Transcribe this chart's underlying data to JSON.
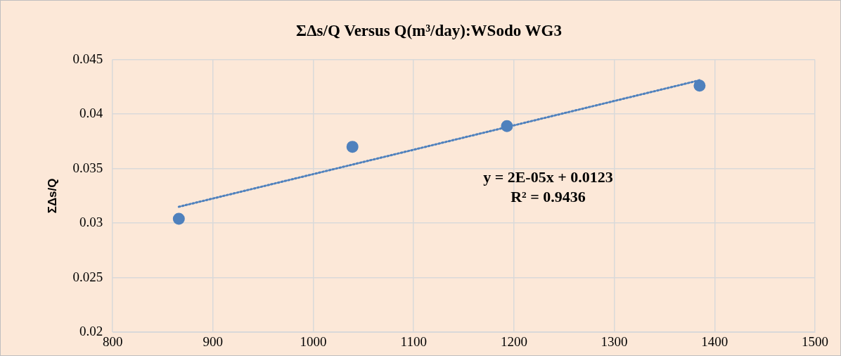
{
  "chart_data": {
    "type": "scatter",
    "title": "ΣΔs/Q Versus Q(m³/day):WSodo WG3",
    "ylabel": "ΣΔs/Q",
    "series": [
      {
        "color": "#4f81bd",
        "x": [
          866,
          1039,
          1193,
          1385
        ],
        "values": [
          0.0304,
          0.037,
          0.0389,
          0.0426
        ],
        "marker": "circle"
      },
      {
        "type": "line",
        "color": "#4f81bd",
        "x": [
          866,
          1385
        ],
        "values": [
          0.0315,
          0.0431
        ],
        "marker": "none",
        "line_style": "dotted"
      }
    ],
    "xlim": [
      800,
      1500
    ],
    "xticks": [
      800,
      900,
      1000,
      1100,
      1200,
      1300,
      1400,
      1500
    ],
    "ylim": [
      0.02,
      0.045
    ],
    "yticks": [
      0.02,
      0.025,
      0.03,
      0.035,
      0.04,
      0.045
    ],
    "grid": true,
    "legend": false,
    "annotations": [
      "y = 2E-05x + 0.0123",
      "R² = 0.9436"
    ]
  }
}
